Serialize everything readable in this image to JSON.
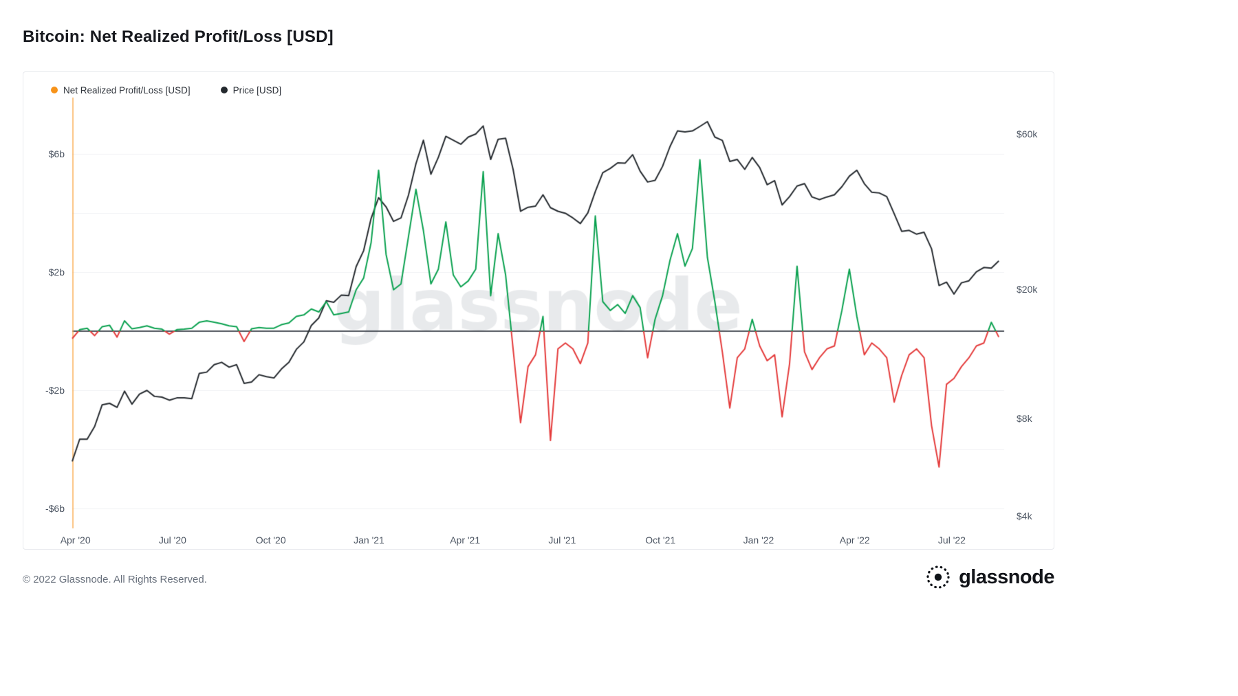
{
  "page": {
    "title": "Bitcoin: Net Realized Profit/Loss [USD]",
    "footer": {
      "copyright": "© 2022 Glassnode. All Rights Reserved.",
      "brand": "glassnode"
    }
  },
  "watermark": "glassnode",
  "legend": [
    {
      "label": "Net Realized Profit/Loss [USD]",
      "color": "#f7931a"
    },
    {
      "label": "Price [USD]",
      "color": "#24292e"
    }
  ],
  "chart_data": {
    "type": "line",
    "title": "Bitcoin: Net Realized Profit/Loss [USD]",
    "grid": "horizontal",
    "legend_position": "top-left",
    "x": [
      "2020-03-29",
      "2020-04-05",
      "2020-04-12",
      "2020-04-19",
      "2020-04-26",
      "2020-05-03",
      "2020-05-10",
      "2020-05-17",
      "2020-05-24",
      "2020-05-31",
      "2020-06-07",
      "2020-06-14",
      "2020-06-21",
      "2020-06-28",
      "2020-07-05",
      "2020-07-12",
      "2020-07-19",
      "2020-07-26",
      "2020-08-02",
      "2020-08-09",
      "2020-08-16",
      "2020-08-23",
      "2020-08-30",
      "2020-09-06",
      "2020-09-13",
      "2020-09-20",
      "2020-09-27",
      "2020-10-04",
      "2020-10-11",
      "2020-10-18",
      "2020-10-25",
      "2020-11-01",
      "2020-11-08",
      "2020-11-15",
      "2020-11-22",
      "2020-11-29",
      "2020-12-06",
      "2020-12-13",
      "2020-12-20",
      "2020-12-27",
      "2021-01-03",
      "2021-01-10",
      "2021-01-17",
      "2021-01-24",
      "2021-01-31",
      "2021-02-07",
      "2021-02-14",
      "2021-02-21",
      "2021-02-28",
      "2021-03-07",
      "2021-03-14",
      "2021-03-21",
      "2021-03-28",
      "2021-04-04",
      "2021-04-11",
      "2021-04-18",
      "2021-04-25",
      "2021-05-02",
      "2021-05-09",
      "2021-05-16",
      "2021-05-23",
      "2021-05-30",
      "2021-06-06",
      "2021-06-13",
      "2021-06-20",
      "2021-06-27",
      "2021-07-04",
      "2021-07-11",
      "2021-07-18",
      "2021-07-25",
      "2021-08-01",
      "2021-08-08",
      "2021-08-15",
      "2021-08-22",
      "2021-08-29",
      "2021-09-05",
      "2021-09-12",
      "2021-09-19",
      "2021-09-26",
      "2021-10-03",
      "2021-10-10",
      "2021-10-17",
      "2021-10-24",
      "2021-10-31",
      "2021-11-07",
      "2021-11-14",
      "2021-11-21",
      "2021-11-28",
      "2021-12-05",
      "2021-12-12",
      "2021-12-19",
      "2021-12-26",
      "2022-01-02",
      "2022-01-09",
      "2022-01-16",
      "2022-01-23",
      "2022-01-30",
      "2022-02-06",
      "2022-02-13",
      "2022-02-20",
      "2022-02-27",
      "2022-03-06",
      "2022-03-13",
      "2022-03-20",
      "2022-03-27",
      "2022-04-03",
      "2022-04-10",
      "2022-04-17",
      "2022-04-24",
      "2022-05-01",
      "2022-05-08",
      "2022-05-15",
      "2022-05-22",
      "2022-05-29",
      "2022-06-05",
      "2022-06-12",
      "2022-06-19",
      "2022-06-26",
      "2022-07-03",
      "2022-07-10",
      "2022-07-17",
      "2022-07-24",
      "2022-07-31",
      "2022-08-07",
      "2022-08-14"
    ],
    "series": [
      {
        "name": "Net Realized Profit/Loss [USD]",
        "axis": "left",
        "unit": "USD billions",
        "colors": {
          "positive": "#0aa14f",
          "negative": "#e43b3b",
          "axis": "#f7a43c"
        },
        "values": [
          -0.25,
          0.05,
          0.1,
          -0.15,
          0.15,
          0.2,
          -0.2,
          0.35,
          0.08,
          0.12,
          0.18,
          0.1,
          0.07,
          -0.1,
          0.05,
          0.07,
          0.1,
          0.3,
          0.35,
          0.3,
          0.25,
          0.18,
          0.15,
          -0.35,
          0.08,
          0.12,
          0.1,
          0.1,
          0.22,
          0.28,
          0.5,
          0.55,
          0.75,
          0.65,
          1.0,
          0.55,
          0.6,
          0.65,
          1.4,
          1.8,
          3.0,
          5.45,
          2.6,
          1.4,
          1.6,
          3.2,
          4.8,
          3.4,
          1.6,
          2.1,
          3.7,
          1.9,
          1.5,
          1.7,
          2.1,
          5.4,
          1.2,
          3.3,
          1.9,
          -0.6,
          -3.1,
          -1.2,
          -0.8,
          0.5,
          -3.7,
          -0.6,
          -0.4,
          -0.6,
          -1.1,
          -0.4,
          3.9,
          1.0,
          0.7,
          0.9,
          0.6,
          1.2,
          0.8,
          -0.9,
          0.4,
          1.2,
          2.4,
          3.3,
          2.2,
          2.8,
          5.8,
          2.5,
          1.0,
          -0.7,
          -2.6,
          -0.9,
          -0.6,
          0.4,
          -0.5,
          -1.0,
          -0.8,
          -2.9,
          -1.1,
          2.2,
          -0.7,
          -1.3,
          -0.9,
          -0.6,
          -0.5,
          0.7,
          2.1,
          0.5,
          -0.8,
          -0.4,
          -0.6,
          -0.9,
          -2.4,
          -1.5,
          -0.8,
          -0.6,
          -0.9,
          -3.2,
          -4.6,
          -1.8,
          -1.6,
          -1.2,
          -0.9,
          -0.5,
          -0.4,
          0.3,
          -0.2
        ]
      },
      {
        "name": "Price [USD]",
        "axis": "right",
        "unit": "USD",
        "scale": "log",
        "color": "#24292e",
        "values": [
          5900,
          6900,
          6900,
          7550,
          8800,
          8900,
          8650,
          9700,
          8850,
          9500,
          9750,
          9350,
          9300,
          9100,
          9250,
          9250,
          9200,
          11000,
          11100,
          11700,
          11900,
          11500,
          11700,
          10250,
          10350,
          10900,
          10750,
          10650,
          11350,
          11900,
          13050,
          13750,
          15450,
          16300,
          18400,
          18200,
          19150,
          19100,
          23450,
          26250,
          33000,
          38200,
          35800,
          32300,
          33100,
          38900,
          48600,
          57400,
          45100,
          50900,
          59000,
          57400,
          55800,
          58700,
          60000,
          63500,
          50100,
          57800,
          58200,
          46700,
          34700,
          35700,
          36000,
          39000,
          35600,
          34700,
          34200,
          33100,
          31800,
          34300,
          39900,
          45600,
          47000,
          48900,
          48800,
          51800,
          46100,
          42700,
          43200,
          47700,
          54900,
          61300,
          60900,
          61300,
          63300,
          65500,
          58700,
          57300,
          49400,
          50100,
          46700,
          50800,
          47300,
          41900,
          43100,
          36300,
          38500,
          41500,
          42200,
          38400,
          37700,
          38400,
          39000,
          41300,
          44500,
          46400,
          42200,
          39700,
          39500,
          38500,
          34100,
          30100,
          30300,
          29500,
          29900,
          26600,
          20500,
          21000,
          19300,
          20900,
          21200,
          22600,
          23300,
          23200,
          24400
        ]
      }
    ],
    "left_axis": {
      "unit": "USD billions",
      "range": [
        -6.7,
        7.9
      ],
      "ticks": [
        {
          "label": "$6b",
          "value": 6
        },
        {
          "label": "$2b",
          "value": 2
        },
        {
          "label": "-$2b",
          "value": -2
        },
        {
          "label": "-$6b",
          "value": -6
        }
      ],
      "grid_values": [
        6,
        4,
        2,
        -2,
        -4,
        -6
      ],
      "zero_line": 0
    },
    "right_axis": {
      "unit": "USD",
      "scale": "log",
      "range": [
        3700,
        77000
      ],
      "ticks": [
        {
          "label": "$60k",
          "value": 60000
        },
        {
          "label": "$20k",
          "value": 20000
        },
        {
          "label": "$8k",
          "value": 8000
        },
        {
          "label": "$4k",
          "value": 4000
        }
      ]
    },
    "x_ticks": [
      {
        "label": "Apr '20",
        "date": "2020-04-01"
      },
      {
        "label": "Jul '20",
        "date": "2020-07-01"
      },
      {
        "label": "Oct '20",
        "date": "2020-10-01"
      },
      {
        "label": "Jan '21",
        "date": "2021-01-01"
      },
      {
        "label": "Apr '21",
        "date": "2021-04-01"
      },
      {
        "label": "Jul '21",
        "date": "2021-07-01"
      },
      {
        "label": "Oct '21",
        "date": "2021-10-01"
      },
      {
        "label": "Jan '22",
        "date": "2022-01-01"
      },
      {
        "label": "Apr '22",
        "date": "2022-04-01"
      },
      {
        "label": "Jul '22",
        "date": "2022-07-01"
      }
    ]
  }
}
